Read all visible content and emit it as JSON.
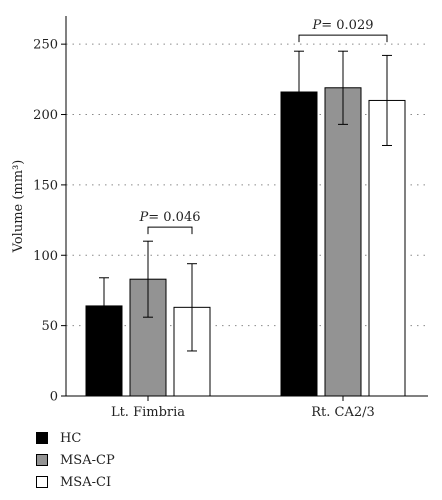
{
  "chart_data": {
    "type": "bar",
    "categories": [
      "Lt. Fimbria",
      "Rt. CA2/3"
    ],
    "series": [
      {
        "name": "HC",
        "color": "#000000",
        "values": [
          64,
          216
        ],
        "errors": [
          20,
          29
        ]
      },
      {
        "name": "MSA-CP",
        "color": "#939393",
        "values": [
          83,
          219
        ],
        "errors": [
          27,
          26
        ]
      },
      {
        "name": "MSA-CI",
        "color": "#ffffff",
        "values": [
          63,
          210
        ],
        "errors": [
          31,
          32
        ]
      }
    ],
    "ylabel": "Volume (mm³)",
    "ylim": [
      0,
      270
    ],
    "yticks": [
      0,
      50,
      100,
      150,
      200,
      250
    ],
    "grid": "horizontal dotted",
    "legend": "bottom-left",
    "annotations": [
      {
        "category": "Lt. Fimbria",
        "between": [
          "MSA-CP",
          "MSA-CI"
        ],
        "label_italic": "P",
        "label_rest": "= 0.046"
      },
      {
        "category": "Rt. CA2/3",
        "between": [
          "HC",
          "MSA-CI"
        ],
        "label_italic": "P",
        "label_rest": "= 0.029"
      }
    ]
  }
}
